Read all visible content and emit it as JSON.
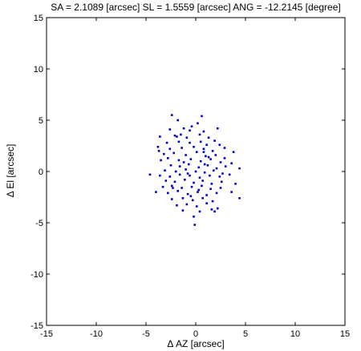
{
  "chart_data": {
    "type": "scatter",
    "title": "SA = 2.1089 [arcsec]  SL = 1.5559 [arcsec]  ANG = -12.2145 [degree]",
    "xlabel": "Δ AZ [arcsec]",
    "ylabel": "Δ El [arcsec]",
    "xlim": [
      -15,
      15
    ],
    "ylim": [
      -15,
      15
    ],
    "xticks": [
      -15,
      -10,
      -5,
      0,
      5,
      10,
      15
    ],
    "yticks": [
      -15,
      -10,
      -5,
      0,
      5,
      10,
      15
    ],
    "grid": false,
    "marker_color": "#0000cc",
    "series": [
      {
        "points": [
          [
            -2.4,
            5.5
          ],
          [
            -1.8,
            5.0
          ],
          [
            0.6,
            5.4
          ],
          [
            -0.4,
            4.4
          ],
          [
            0.2,
            4.7
          ],
          [
            -2.6,
            4.1
          ],
          [
            -1.2,
            4.2
          ],
          [
            -0.6,
            4.0
          ],
          [
            0.8,
            3.9
          ],
          [
            2.2,
            4.2
          ],
          [
            -3.6,
            3.4
          ],
          [
            -2.1,
            3.5
          ],
          [
            -1.5,
            3.6
          ],
          [
            -0.9,
            3.3
          ],
          [
            0.4,
            3.6
          ],
          [
            1.3,
            3.3
          ],
          [
            1.9,
            3.0
          ],
          [
            -2.9,
            2.8
          ],
          [
            -1.7,
            2.9
          ],
          [
            -0.6,
            2.8
          ],
          [
            0.5,
            2.9
          ],
          [
            1.1,
            2.6
          ],
          [
            2.4,
            2.6
          ],
          [
            -3.8,
            2.4
          ],
          [
            -2.6,
            2.2
          ],
          [
            -1.4,
            2.3
          ],
          [
            -0.2,
            2.4
          ],
          [
            0.8,
            2.2
          ],
          [
            1.7,
            2.0
          ],
          [
            3.8,
            1.9
          ],
          [
            -3.2,
            1.7
          ],
          [
            -2.2,
            1.8
          ],
          [
            -1.0,
            1.6
          ],
          [
            0.1,
            1.9
          ],
          [
            1.0,
            1.5
          ],
          [
            2.0,
            1.6
          ],
          [
            2.9,
            1.3
          ],
          [
            -3.5,
            1.1
          ],
          [
            -2.8,
            1.3
          ],
          [
            -1.7,
            1.1
          ],
          [
            -0.5,
            1.2
          ],
          [
            0.5,
            1.0
          ],
          [
            1.5,
            1.2
          ],
          [
            2.5,
            0.9
          ],
          [
            3.6,
            0.8
          ],
          [
            -2.5,
            0.6
          ],
          [
            -1.6,
            0.5
          ],
          [
            -0.7,
            0.7
          ],
          [
            0.3,
            0.4
          ],
          [
            1.2,
            0.6
          ],
          [
            2.1,
            0.3
          ],
          [
            3.0,
            0.5
          ],
          [
            4.4,
            0.3
          ],
          [
            -3.1,
            0.1
          ],
          [
            -2.0,
            0.0
          ],
          [
            -1.0,
            0.2
          ],
          [
            0.0,
            0.0
          ],
          [
            0.9,
            -0.1
          ],
          [
            1.8,
            0.1
          ],
          [
            2.7,
            -0.2
          ],
          [
            -4.6,
            -0.3
          ],
          [
            -3.6,
            -0.4
          ],
          [
            -2.6,
            -0.5
          ],
          [
            -1.6,
            -0.3
          ],
          [
            -0.6,
            -0.4
          ],
          [
            0.4,
            -0.6
          ],
          [
            1.4,
            -0.4
          ],
          [
            2.4,
            -0.5
          ],
          [
            3.4,
            -0.3
          ],
          [
            -3.0,
            -0.9
          ],
          [
            -2.1,
            -1.0
          ],
          [
            -1.1,
            -0.8
          ],
          [
            -0.2,
            -1.1
          ],
          [
            0.7,
            -0.9
          ],
          [
            1.6,
            -1.2
          ],
          [
            2.6,
            -1.0
          ],
          [
            4.0,
            -1.2
          ],
          [
            -3.3,
            -1.5
          ],
          [
            -2.4,
            -1.4
          ],
          [
            -1.4,
            -1.6
          ],
          [
            -0.4,
            -1.5
          ],
          [
            0.6,
            -1.4
          ],
          [
            1.5,
            -1.7
          ],
          [
            2.5,
            -1.6
          ],
          [
            -4.0,
            -2.0
          ],
          [
            -2.8,
            -2.1
          ],
          [
            -1.8,
            -1.9
          ],
          [
            -0.8,
            -2.2
          ],
          [
            0.2,
            -2.0
          ],
          [
            1.1,
            -2.3
          ],
          [
            2.1,
            -2.1
          ],
          [
            3.6,
            -2.0
          ],
          [
            -2.4,
            -2.7
          ],
          [
            -1.3,
            -2.6
          ],
          [
            -0.3,
            -2.8
          ],
          [
            0.7,
            -2.6
          ],
          [
            1.7,
            -2.9
          ],
          [
            4.4,
            -2.6
          ],
          [
            -1.9,
            -3.3
          ],
          [
            -0.9,
            -3.2
          ],
          [
            0.1,
            -3.4
          ],
          [
            1.1,
            -3.1
          ],
          [
            2.2,
            -3.6
          ],
          [
            -1.3,
            -3.8
          ],
          [
            0.4,
            -3.9
          ],
          [
            1.6,
            -3.7
          ],
          [
            -0.2,
            -4.4
          ],
          [
            -0.1,
            -5.2
          ],
          [
            1.9,
            -3.9
          ],
          [
            -1.2,
            0.9
          ],
          [
            -0.8,
            -0.2
          ],
          [
            0.8,
            1.9
          ],
          [
            -1.9,
            3.4
          ],
          [
            2.9,
            2.3
          ],
          [
            -2.3,
            -1.6
          ],
          [
            0.3,
            -1.8
          ],
          [
            -0.5,
            -2.4
          ],
          [
            1.3,
            1.4
          ],
          [
            -3.7,
            2.0
          ],
          [
            0.9,
            0.7
          ]
        ]
      }
    ]
  }
}
